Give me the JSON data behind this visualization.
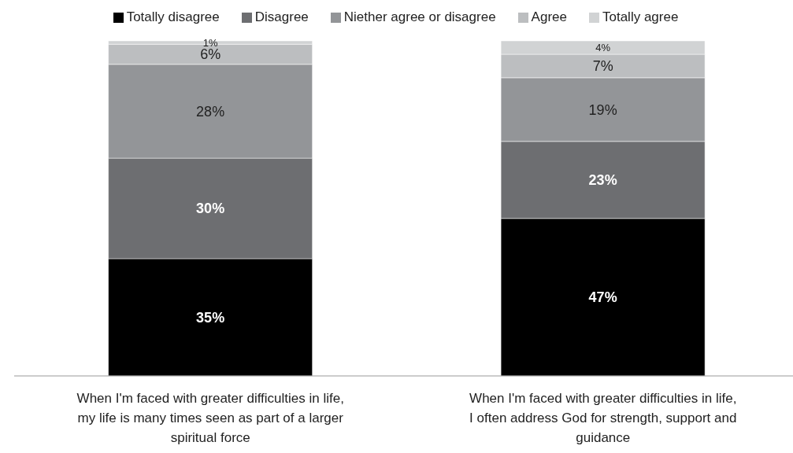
{
  "chart_data": {
    "type": "bar",
    "stacked": true,
    "legend": "top",
    "grid": false,
    "categories": [
      "When I'm faced with greater difficulties in life, my life is many times seen as part of a larger spiritual force",
      "When I'm faced with greater difficulties in life, I often address God for strength, support and guidance"
    ],
    "series": [
      {
        "name": "Totally disagree",
        "color": "#000000",
        "values": [
          35,
          47
        ],
        "value_labels": [
          "35%",
          "47%"
        ]
      },
      {
        "name": "Disagree",
        "color": "#6d6e71",
        "values": [
          30,
          23
        ],
        "value_labels": [
          "30%",
          "23%"
        ]
      },
      {
        "name": "Niether agree or disagree",
        "color": "#939598",
        "values": [
          28,
          19
        ],
        "value_labels": [
          "28%",
          "19%"
        ]
      },
      {
        "name": "Agree",
        "color": "#bcbec0",
        "values": [
          6,
          7
        ],
        "value_labels": [
          "6%",
          "7%"
        ]
      },
      {
        "name": "Totally agree",
        "color": "#d1d3d4",
        "values": [
          1,
          4
        ],
        "value_labels": [
          "1%",
          "4%"
        ]
      }
    ]
  }
}
